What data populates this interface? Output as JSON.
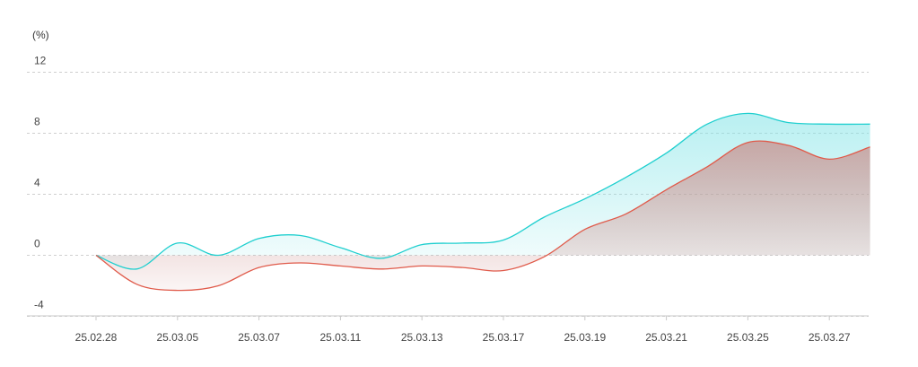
{
  "chart_data": {
    "type": "area",
    "unit_label": "(%)",
    "y_ticks": [
      12,
      8,
      4,
      0,
      -4
    ],
    "ylim": [
      -4,
      12
    ],
    "x_tick_labels": [
      "25.02.28",
      "25.03.05",
      "25.03.07",
      "25.03.11",
      "25.03.13",
      "25.03.17",
      "25.03.19",
      "25.03.21",
      "25.03.25",
      "25.03.27"
    ],
    "x_points": 20,
    "grid": true,
    "series": [
      {
        "color": "#1fcfcf",
        "fill_color": "#7fe3e6",
        "values": [
          0,
          -0.9,
          0.8,
          0.0,
          1.1,
          1.3,
          0.5,
          -0.2,
          0.7,
          0.8,
          1.0,
          2.5,
          3.7,
          5.1,
          6.7,
          8.6,
          9.3,
          8.7,
          8.6,
          8.6
        ]
      },
      {
        "color": "#e05a4a",
        "fill_color": "#c98784",
        "values": [
          0,
          -1.9,
          -2.3,
          -2.0,
          -0.8,
          -0.5,
          -0.7,
          -0.9,
          -0.7,
          -0.8,
          -1.0,
          -0.1,
          1.7,
          2.7,
          4.3,
          5.8,
          7.4,
          7.2,
          6.3,
          7.1
        ]
      }
    ]
  }
}
